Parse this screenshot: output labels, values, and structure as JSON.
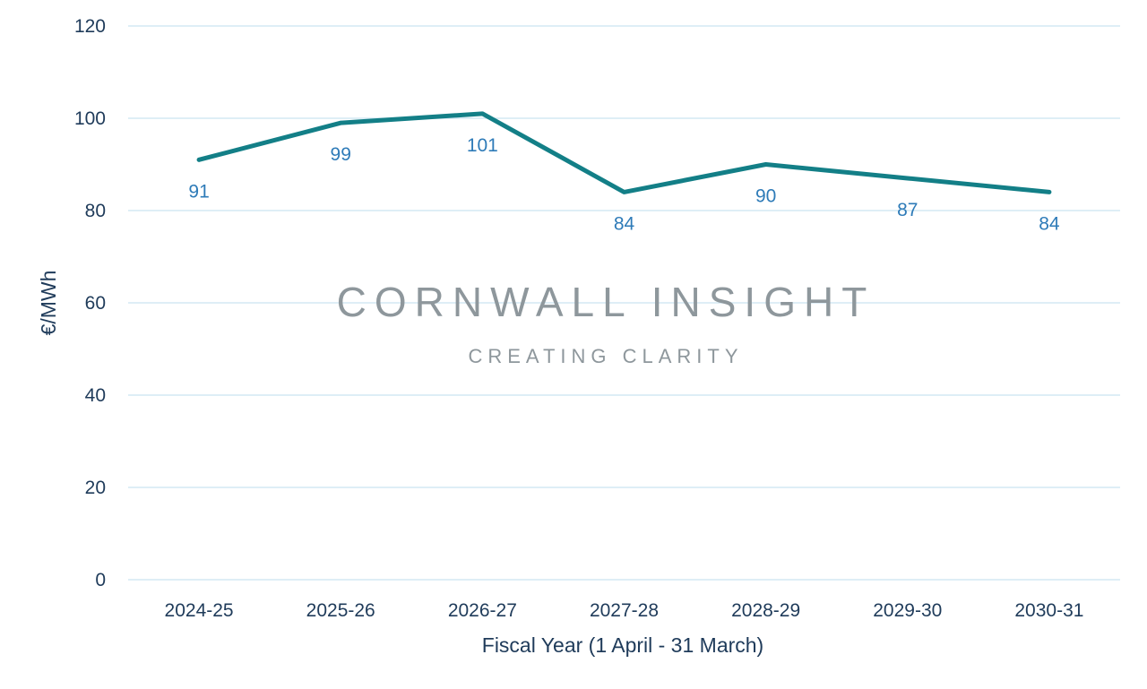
{
  "chart_data": {
    "type": "line",
    "title": "",
    "xlabel": "Fiscal Year (1 April - 31 March)",
    "ylabel": "€/MWh",
    "categories": [
      "2024-25",
      "2025-26",
      "2026-27",
      "2027-28",
      "2028-29",
      "2029-30",
      "2030-31"
    ],
    "values": [
      91,
      99,
      101,
      84,
      90,
      87,
      84
    ],
    "data_labels": [
      "91",
      "99",
      "101",
      "84",
      "90",
      "87",
      "84"
    ],
    "ylim": [
      0,
      120
    ],
    "yticks": [
      0,
      20,
      40,
      60,
      80,
      100,
      120
    ],
    "grid": true,
    "legend": "none",
    "colors": {
      "line": "#137f87",
      "data_label": "#2e7bb8",
      "grid": "#d3e8f3",
      "axis_text": "#1f3b5a"
    }
  },
  "watermark": {
    "title": "CORNWALL INSIGHT",
    "subtitle": "CREATING CLARITY"
  }
}
